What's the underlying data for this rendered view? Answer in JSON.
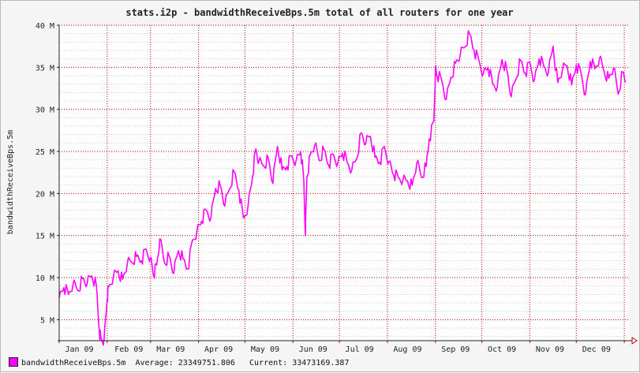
{
  "chart_data": {
    "type": "line",
    "title": "stats.i2p - bandwidthReceiveBps.5m total of all routers for one year",
    "ylabel": "bandwidthReceiveBps.5m",
    "xlabel": "",
    "ylim": [
      2500000,
      40000000
    ],
    "y_ticks": [
      {
        "value": 5000000,
        "label": "5 M"
      },
      {
        "value": 10000000,
        "label": "10 M"
      },
      {
        "value": 15000000,
        "label": "15 M"
      },
      {
        "value": 20000000,
        "label": "20 M"
      },
      {
        "value": 25000000,
        "label": "25 M"
      },
      {
        "value": 30000000,
        "label": "30 M"
      },
      {
        "value": 35000000,
        "label": "35 M"
      },
      {
        "value": 40000000,
        "label": "40 M"
      }
    ],
    "x_range": [
      "2009-01-01",
      "2010-01-04"
    ],
    "x_ticks": [
      {
        "date": "2009-01-14",
        "label": "Jan 09"
      },
      {
        "date": "2009-02-15",
        "label": "Feb 09"
      },
      {
        "date": "2009-03-14",
        "label": "Mar 09"
      },
      {
        "date": "2009-04-14",
        "label": "Apr 09"
      },
      {
        "date": "2009-05-14",
        "label": "May 09"
      },
      {
        "date": "2009-06-14",
        "label": "Jun 09"
      },
      {
        "date": "2009-07-14",
        "label": "Jul 09"
      },
      {
        "date": "2009-08-14",
        "label": "Aug 09"
      },
      {
        "date": "2009-09-14",
        "label": "Sep 09"
      },
      {
        "date": "2009-10-14",
        "label": "Oct 09"
      },
      {
        "date": "2009-11-14",
        "label": "Nov 09"
      },
      {
        "date": "2009-12-14",
        "label": "Dec 09"
      }
    ],
    "month_boundaries": [
      "2009-02-01",
      "2009-03-01",
      "2009-04-01",
      "2009-05-01",
      "2009-06-01",
      "2009-07-01",
      "2009-08-01",
      "2009-09-01",
      "2009-10-01",
      "2009-11-01",
      "2009-12-01",
      "2010-01-01"
    ],
    "grid": true,
    "legend_position": "bottom-left",
    "series": [
      {
        "name": "bandwidthReceiveBps.5m",
        "color": "#ff00ff",
        "x": [
          "2009-01-01",
          "2009-01-04",
          "2009-01-07",
          "2009-01-10",
          "2009-01-13",
          "2009-01-16",
          "2009-01-19",
          "2009-01-22",
          "2009-01-25",
          "2009-01-27",
          "2009-01-28",
          "2009-01-30",
          "2009-02-01",
          "2009-02-02",
          "2009-02-05",
          "2009-02-08",
          "2009-02-11",
          "2009-02-14",
          "2009-02-17",
          "2009-02-20",
          "2009-02-23",
          "2009-02-26",
          "2009-03-01",
          "2009-03-03",
          "2009-03-05",
          "2009-03-07",
          "2009-03-10",
          "2009-03-13",
          "2009-03-16",
          "2009-03-19",
          "2009-03-22",
          "2009-03-25",
          "2009-03-28",
          "2009-03-31",
          "2009-04-03",
          "2009-04-06",
          "2009-04-09",
          "2009-04-12",
          "2009-04-15",
          "2009-04-18",
          "2009-04-21",
          "2009-04-24",
          "2009-04-27",
          "2009-04-30",
          "2009-05-03",
          "2009-05-06",
          "2009-05-08",
          "2009-05-10",
          "2009-05-13",
          "2009-05-16",
          "2009-05-19",
          "2009-05-22",
          "2009-05-25",
          "2009-05-28",
          "2009-05-31",
          "2009-06-03",
          "2009-06-06",
          "2009-06-08",
          "2009-06-09",
          "2009-06-10",
          "2009-06-12",
          "2009-06-15",
          "2009-06-18",
          "2009-06-21",
          "2009-06-24",
          "2009-06-27",
          "2009-06-30",
          "2009-07-03",
          "2009-07-06",
          "2009-07-09",
          "2009-07-12",
          "2009-07-15",
          "2009-07-18",
          "2009-07-21",
          "2009-07-24",
          "2009-07-27",
          "2009-07-30",
          "2009-08-02",
          "2009-08-05",
          "2009-08-08",
          "2009-08-11",
          "2009-08-14",
          "2009-08-17",
          "2009-08-20",
          "2009-08-23",
          "2009-08-26",
          "2009-08-28",
          "2009-08-31",
          "2009-09-01",
          "2009-09-02",
          "2009-09-05",
          "2009-09-08",
          "2009-09-11",
          "2009-09-14",
          "2009-09-17",
          "2009-09-20",
          "2009-09-23",
          "2009-09-26",
          "2009-09-29",
          "2009-10-02",
          "2009-10-05",
          "2009-10-08",
          "2009-10-11",
          "2009-10-14",
          "2009-10-17",
          "2009-10-20",
          "2009-10-23",
          "2009-10-26",
          "2009-10-29",
          "2009-11-01",
          "2009-11-04",
          "2009-11-07",
          "2009-11-10",
          "2009-11-13",
          "2009-11-16",
          "2009-11-19",
          "2009-11-22",
          "2009-11-25",
          "2009-11-28",
          "2009-12-01",
          "2009-12-04",
          "2009-12-07",
          "2009-12-10",
          "2009-12-13",
          "2009-12-16",
          "2009-12-19",
          "2009-12-22",
          "2009-12-25",
          "2009-12-28",
          "2009-12-31",
          "2010-01-02"
        ],
        "y": [
          7600000,
          8800000,
          8000000,
          9300000,
          8500000,
          9900000,
          9200000,
          10200000,
          9000000,
          3500000,
          2800000,
          2700000,
          7400000,
          8900000,
          10100000,
          10800000,
          9800000,
          11600000,
          11800000,
          12500000,
          12000000,
          13400000,
          12400000,
          10200000,
          11500000,
          14600000,
          11800000,
          12600000,
          10500000,
          13200000,
          12200000,
          11000000,
          14400000,
          15600000,
          16700000,
          18000000,
          17100000,
          20600000,
          21000000,
          18500000,
          20500000,
          22600000,
          20400000,
          17100000,
          18600000,
          22100000,
          25300000,
          23800000,
          23300000,
          24200000,
          21200000,
          25600000,
          22800000,
          23200000,
          24500000,
          23900000,
          25000000,
          21500000,
          15000000,
          22000000,
          24500000,
          25700000,
          23900000,
          25200000,
          23400000,
          24700000,
          23700000,
          24800000,
          23700000,
          22800000,
          24100000,
          27200000,
          25900000,
          26800000,
          24300000,
          23700000,
          25600000,
          23800000,
          22200000,
          21900000,
          21600000,
          21500000,
          21000000,
          23600000,
          21900000,
          23200000,
          26500000,
          28600000,
          35000000,
          34000000,
          33500000,
          31200000,
          33800000,
          35500000,
          36400000,
          37400000,
          39000000,
          37000000,
          35900000,
          34300000,
          35000000,
          33000000,
          32700000,
          35900000,
          34800000,
          31500000,
          33600000,
          35800000,
          34300000,
          35600000,
          33500000,
          36000000,
          35100000,
          34400000,
          37500000,
          33200000,
          34600000,
          35200000,
          32900000,
          35300000,
          34400000,
          31800000,
          35700000,
          34800000,
          36100000,
          34500000,
          33700000,
          34900000,
          31800000,
          34400000,
          33300000
        ]
      }
    ],
    "legend": {
      "name": "bandwidthReceiveBps.5m",
      "average_label": "Average:",
      "average": "23349751.806",
      "current_label": "Current:",
      "current": "33473169.387"
    }
  }
}
